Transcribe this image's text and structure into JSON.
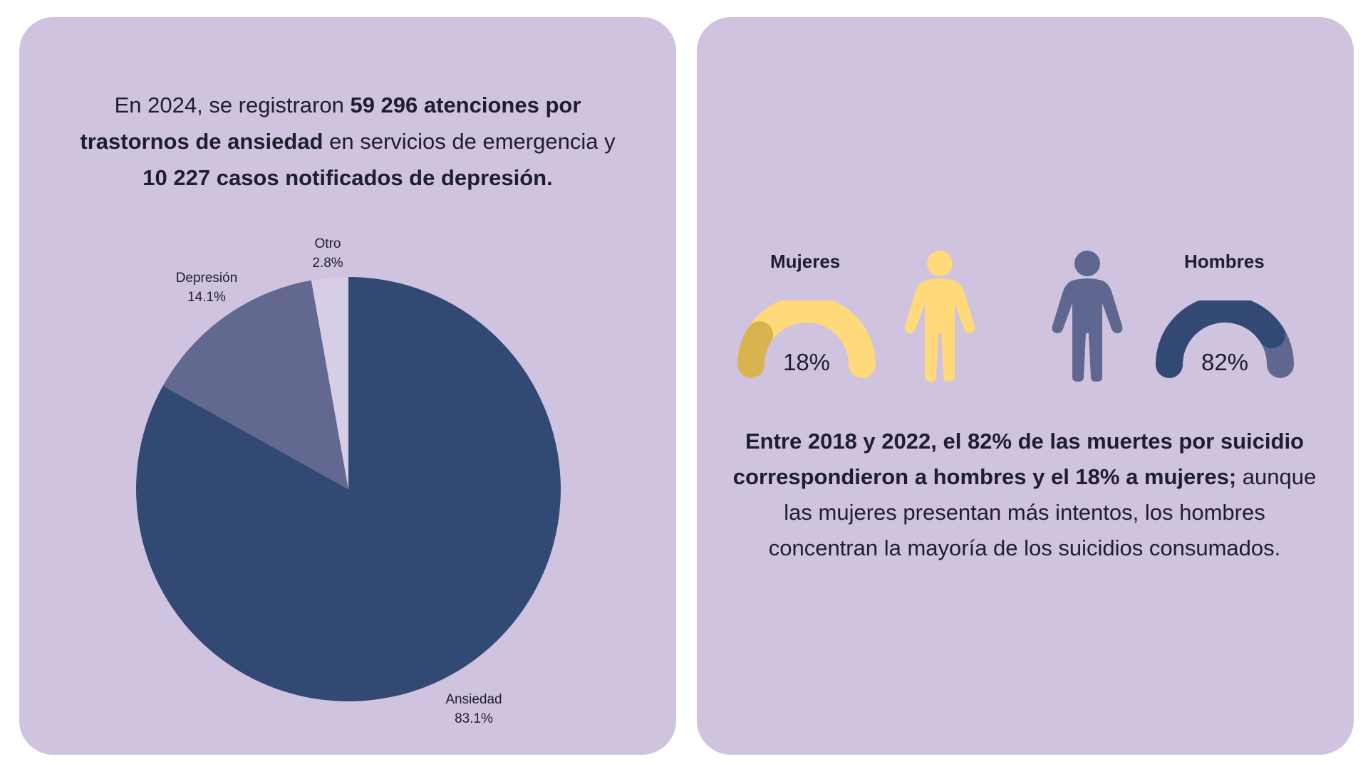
{
  "intro": {
    "t1": "En 2024, se registraron ",
    "b1": "59 296 atenciones por trastornos de ansiedad",
    "t2": " en servicios de emergencia y ",
    "b2": "10 227 casos notificados de depresión."
  },
  "chart_data": {
    "type": "pie",
    "categories": [
      "Ansiedad",
      "Depresión",
      "Otro"
    ],
    "values": [
      83.1,
      14.1,
      2.8
    ],
    "labels": [
      "83.1%",
      "14.1%",
      "2.8%"
    ],
    "colors": [
      "#324a73",
      "#62688f",
      "#d7cde6"
    ],
    "title": "",
    "legend": "none"
  },
  "gender": {
    "women": {
      "label": "Mujeres",
      "value": 18,
      "display": "18%",
      "color": "#ffd97a",
      "accent": "#d9b350"
    },
    "men": {
      "label": "Hombres",
      "value": 82,
      "display": "82%",
      "color": "#5f6690",
      "accent": "#324a73"
    },
    "icons": {
      "woman": "woman-figure-icon",
      "man": "man-figure-icon"
    }
  },
  "summary": {
    "b1": "Entre 2018 y 2022, el 82% de las muertes por suicidio correspondieron a hombres y el 18% a mujeres;",
    "t1": " aunque las mujeres presentan más intentos, los hombres concentran la mayoría de los suicidios consumados."
  }
}
